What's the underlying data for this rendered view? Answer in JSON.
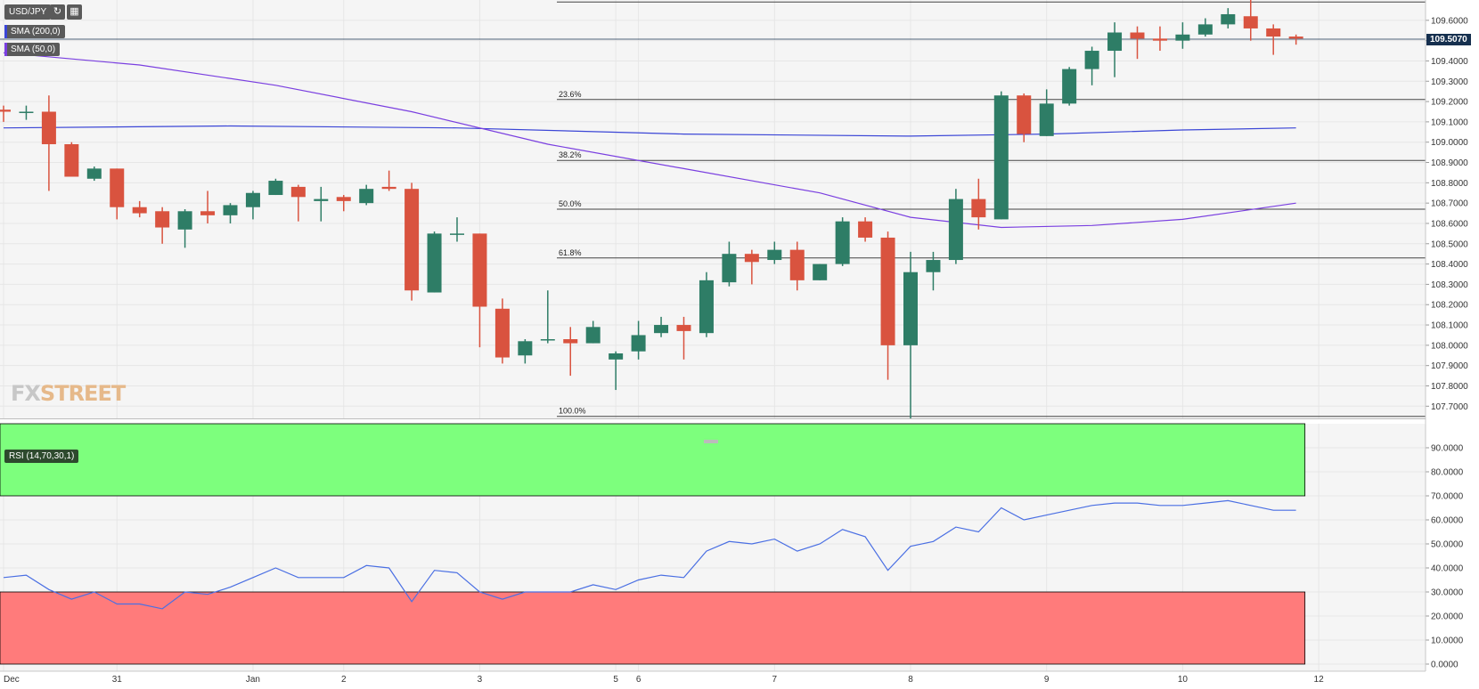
{
  "toolbar": {
    "symbol": "USD/JPY",
    "refresh_icon": "refresh-icon",
    "calendar_icon": "calendar-icon"
  },
  "indicators": {
    "sma200_label": "SMA (200,0)",
    "sma50_label": "SMA (50,0)",
    "rsi_label": "RSI (14,70,30,1)"
  },
  "logo": {
    "part1": "FX",
    "part2": "STREET"
  },
  "current_price": "109.5070",
  "colors": {
    "up": "#2e7d66",
    "down": "#d9533f",
    "sma200": "#3b46d6",
    "sma50": "#7a3fe0",
    "rsi_line": "#4a6fe3",
    "overbought_fill": "#7dff7d",
    "oversold_fill": "#ff7b7b"
  },
  "chart_data": [
    {
      "type": "candlestick",
      "series_name": "USD/JPY",
      "y_ticks": [
        "109.6000",
        "109.5000",
        "109.4000",
        "109.3000",
        "109.2000",
        "109.1000",
        "109.0000",
        "108.9000",
        "108.8000",
        "108.7000",
        "108.6000",
        "108.5000",
        "108.4000",
        "108.3000",
        "108.2000",
        "108.1000",
        "108.0000",
        "107.9000",
        "107.8000",
        "107.7000"
      ],
      "ylim": [
        107.64,
        109.7
      ],
      "x_ticks": [
        {
          "label": "Dec",
          "index": 0
        },
        {
          "label": "31",
          "index": 5
        },
        {
          "label": "Jan",
          "index": 11
        },
        {
          "label": "2",
          "index": 15
        },
        {
          "label": "3",
          "index": 21
        },
        {
          "label": "5",
          "index": 27
        },
        {
          "label": "6",
          "index": 28
        },
        {
          "label": "7",
          "index": 34
        },
        {
          "label": "8",
          "index": 40
        },
        {
          "label": "9",
          "index": 46
        },
        {
          "label": "10",
          "index": 52
        },
        {
          "label": "12",
          "index": 58
        }
      ],
      "candles": [
        {
          "o": 109.16,
          "h": 109.18,
          "l": 109.1,
          "c": 109.15
        },
        {
          "o": 109.15,
          "h": 109.18,
          "l": 109.11,
          "c": 109.15
        },
        {
          "o": 109.15,
          "h": 109.23,
          "l": 108.76,
          "c": 108.99
        },
        {
          "o": 108.99,
          "h": 109.0,
          "l": 108.83,
          "c": 108.83
        },
        {
          "o": 108.82,
          "h": 108.88,
          "l": 108.81,
          "c": 108.87
        },
        {
          "o": 108.87,
          "h": 108.87,
          "l": 108.62,
          "c": 108.68
        },
        {
          "o": 108.68,
          "h": 108.71,
          "l": 108.63,
          "c": 108.65
        },
        {
          "o": 108.66,
          "h": 108.68,
          "l": 108.5,
          "c": 108.58
        },
        {
          "o": 108.57,
          "h": 108.67,
          "l": 108.48,
          "c": 108.66
        },
        {
          "o": 108.66,
          "h": 108.76,
          "l": 108.6,
          "c": 108.64
        },
        {
          "o": 108.64,
          "h": 108.7,
          "l": 108.6,
          "c": 108.69
        },
        {
          "o": 108.68,
          "h": 108.76,
          "l": 108.62,
          "c": 108.75
        },
        {
          "o": 108.74,
          "h": 108.82,
          "l": 108.74,
          "c": 108.81
        },
        {
          "o": 108.78,
          "h": 108.79,
          "l": 108.61,
          "c": 108.73
        },
        {
          "o": 108.71,
          "h": 108.78,
          "l": 108.61,
          "c": 108.72
        },
        {
          "o": 108.73,
          "h": 108.74,
          "l": 108.66,
          "c": 108.71
        },
        {
          "o": 108.7,
          "h": 108.79,
          "l": 108.69,
          "c": 108.77
        },
        {
          "o": 108.78,
          "h": 108.86,
          "l": 108.76,
          "c": 108.77
        },
        {
          "o": 108.77,
          "h": 108.8,
          "l": 108.22,
          "c": 108.27
        },
        {
          "o": 108.26,
          "h": 108.56,
          "l": 108.26,
          "c": 108.55
        },
        {
          "o": 108.55,
          "h": 108.63,
          "l": 108.51,
          "c": 108.55
        },
        {
          "o": 108.55,
          "h": 108.55,
          "l": 107.99,
          "c": 108.19
        },
        {
          "o": 108.18,
          "h": 108.23,
          "l": 107.91,
          "c": 107.94
        },
        {
          "o": 107.95,
          "h": 108.03,
          "l": 107.91,
          "c": 108.02
        },
        {
          "o": 108.03,
          "h": 108.27,
          "l": 108.01,
          "c": 108.03
        },
        {
          "o": 108.03,
          "h": 108.09,
          "l": 107.85,
          "c": 108.01
        },
        {
          "o": 108.01,
          "h": 108.12,
          "l": 108.01,
          "c": 108.09
        },
        {
          "o": 107.93,
          "h": 107.97,
          "l": 107.78,
          "c": 107.96
        },
        {
          "o": 107.97,
          "h": 108.12,
          "l": 107.93,
          "c": 108.05
        },
        {
          "o": 108.06,
          "h": 108.14,
          "l": 108.04,
          "c": 108.1
        },
        {
          "o": 108.1,
          "h": 108.14,
          "l": 107.93,
          "c": 108.07
        },
        {
          "o": 108.06,
          "h": 108.36,
          "l": 108.04,
          "c": 108.32
        },
        {
          "o": 108.31,
          "h": 108.51,
          "l": 108.29,
          "c": 108.45
        },
        {
          "o": 108.45,
          "h": 108.47,
          "l": 108.3,
          "c": 108.41
        },
        {
          "o": 108.42,
          "h": 108.51,
          "l": 108.4,
          "c": 108.47
        },
        {
          "o": 108.47,
          "h": 108.51,
          "l": 108.27,
          "c": 108.32
        },
        {
          "o": 108.32,
          "h": 108.4,
          "l": 108.32,
          "c": 108.4
        },
        {
          "o": 108.4,
          "h": 108.63,
          "l": 108.39,
          "c": 108.61
        },
        {
          "o": 108.61,
          "h": 108.63,
          "l": 108.51,
          "c": 108.53
        },
        {
          "o": 108.53,
          "h": 108.56,
          "l": 107.83,
          "c": 108.0
        },
        {
          "o": 108.0,
          "h": 108.46,
          "l": 107.64,
          "c": 108.36
        },
        {
          "o": 108.36,
          "h": 108.46,
          "l": 108.27,
          "c": 108.42
        },
        {
          "o": 108.42,
          "h": 108.77,
          "l": 108.4,
          "c": 108.72
        },
        {
          "o": 108.72,
          "h": 108.82,
          "l": 108.57,
          "c": 108.63
        },
        {
          "o": 108.62,
          "h": 109.25,
          "l": 108.62,
          "c": 109.23
        },
        {
          "o": 109.23,
          "h": 109.24,
          "l": 109.0,
          "c": 109.04
        },
        {
          "o": 109.03,
          "h": 109.26,
          "l": 109.03,
          "c": 109.19
        },
        {
          "o": 109.19,
          "h": 109.37,
          "l": 109.18,
          "c": 109.36
        },
        {
          "o": 109.36,
          "h": 109.47,
          "l": 109.28,
          "c": 109.45
        },
        {
          "o": 109.45,
          "h": 109.59,
          "l": 109.32,
          "c": 109.54
        },
        {
          "o": 109.54,
          "h": 109.57,
          "l": 109.41,
          "c": 109.51
        },
        {
          "o": 109.51,
          "h": 109.57,
          "l": 109.45,
          "c": 109.5
        },
        {
          "o": 109.5,
          "h": 109.59,
          "l": 109.46,
          "c": 109.53
        },
        {
          "o": 109.53,
          "h": 109.61,
          "l": 109.52,
          "c": 109.58
        },
        {
          "o": 109.58,
          "h": 109.66,
          "l": 109.56,
          "c": 109.63
        },
        {
          "o": 109.62,
          "h": 109.7,
          "l": 109.5,
          "c": 109.56
        },
        {
          "o": 109.56,
          "h": 109.58,
          "l": 109.43,
          "c": 109.52
        },
        {
          "o": 109.52,
          "h": 109.53,
          "l": 109.48,
          "c": 109.51
        }
      ],
      "sma200": [
        [
          0,
          109.07
        ],
        [
          10,
          109.08
        ],
        [
          20,
          109.07
        ],
        [
          30,
          109.04
        ],
        [
          40,
          109.03
        ],
        [
          46,
          109.04
        ],
        [
          52,
          109.06
        ],
        [
          57,
          109.07
        ]
      ],
      "sma50": [
        [
          0,
          109.44
        ],
        [
          6,
          109.38
        ],
        [
          12,
          109.28
        ],
        [
          18,
          109.15
        ],
        [
          24,
          108.99
        ],
        [
          30,
          108.87
        ],
        [
          36,
          108.75
        ],
        [
          40,
          108.63
        ],
        [
          44,
          108.58
        ],
        [
          48,
          108.59
        ],
        [
          52,
          108.62
        ],
        [
          57,
          108.7
        ]
      ],
      "fibonacci": [
        {
          "label": "",
          "price": 109.69
        },
        {
          "label": "23.6%",
          "price": 109.21
        },
        {
          "label": "38.2%",
          "price": 108.91
        },
        {
          "label": "50.0%",
          "price": 108.67
        },
        {
          "label": "61.8%",
          "price": 108.43
        },
        {
          "label": "100.0%",
          "price": 107.65
        }
      ]
    },
    {
      "type": "line",
      "series_name": "RSI (14,70,30,1)",
      "y_ticks": [
        "90.0000",
        "80.0000",
        "70.0000",
        "60.0000",
        "50.0000",
        "40.0000",
        "30.0000",
        "20.0000",
        "10.0000",
        "0.0000"
      ],
      "ylim": [
        0,
        100
      ],
      "overbought": 70,
      "oversold": 30,
      "values": [
        36,
        37,
        31,
        27,
        30,
        25,
        25,
        23,
        30,
        29,
        32,
        36,
        40,
        36,
        36,
        36,
        41,
        40,
        26,
        39,
        38,
        30,
        27,
        30,
        30,
        30,
        33,
        31,
        35,
        37,
        36,
        47,
        51,
        50,
        52,
        47,
        50,
        56,
        53,
        39,
        49,
        51,
        57,
        55,
        65,
        60,
        62,
        64,
        66,
        67,
        67,
        66,
        66,
        67,
        68,
        66,
        64,
        64
      ]
    }
  ]
}
